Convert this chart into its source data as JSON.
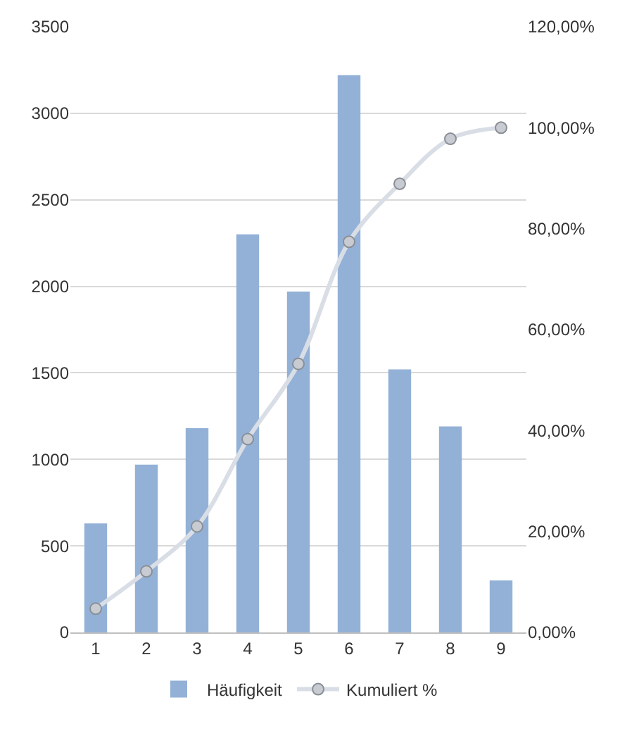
{
  "chart_data": {
    "type": "bar",
    "categories": [
      "1",
      "2",
      "3",
      "4",
      "5",
      "6",
      "7",
      "8",
      "9"
    ],
    "series": [
      {
        "name": "Häufigkeit",
        "color": "#93b1d6",
        "values": [
          630,
          970,
          1180,
          2300,
          1970,
          3220,
          1520,
          1190,
          300
        ]
      },
      {
        "name": "Kumuliert %",
        "type": "line",
        "axis": "y2",
        "color": "#d9dee6",
        "marker": "circle",
        "values": [
          4.7,
          12.1,
          21.0,
          38.3,
          53.2,
          77.4,
          88.9,
          97.8,
          100
        ]
      }
    ],
    "ylim": [
      0,
      3500
    ],
    "yticks": [
      0,
      500,
      1000,
      1500,
      2000,
      2500,
      3000,
      3500
    ],
    "y2lim": [
      0,
      120
    ],
    "y2ticks": [
      {
        "value": 0,
        "label": "0,00%"
      },
      {
        "value": 20,
        "label": "20,00%"
      },
      {
        "value": 40,
        "label": "40,00%"
      },
      {
        "value": 60,
        "label": "60,00%"
      },
      {
        "value": 80,
        "label": "80,00%"
      },
      {
        "value": 100,
        "label": "100,00%"
      },
      {
        "value": 120,
        "label": "120,00%"
      }
    ],
    "grid": "y",
    "legend": "bottom"
  }
}
